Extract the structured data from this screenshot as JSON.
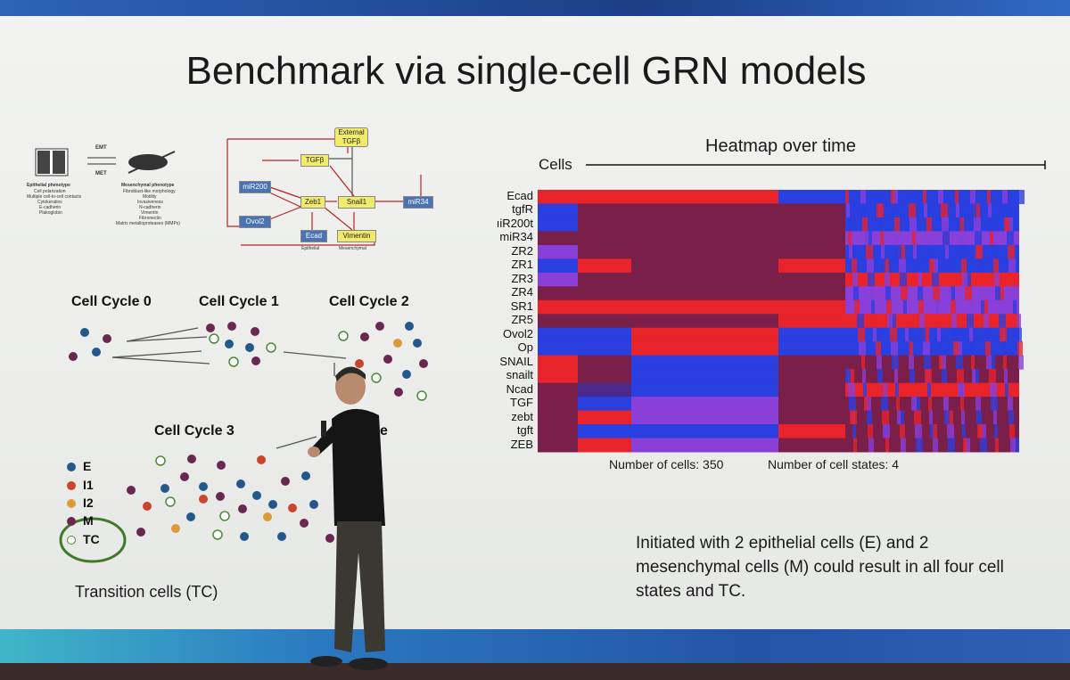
{
  "slide": {
    "title": "Benchmark via single-cell GRN models",
    "cycles": [
      "Cell Cycle 0",
      "Cell Cycle 1",
      "Cell Cycle 2",
      "Cell Cycle 3",
      "Cell Divide"
    ],
    "cycle_divide_visible": "Ce     vide",
    "legend": [
      {
        "label": "E",
        "color": "#22588c"
      },
      {
        "label": "I1",
        "color": "#c9462a"
      },
      {
        "label": "I2",
        "color": "#dc9a3a"
      },
      {
        "label": "M",
        "color": "#6a2750"
      },
      {
        "label": "TC",
        "color": "#ffffff"
      }
    ],
    "transition_label": "Transition cells (TC)",
    "phenotype": {
      "epithelial_title": "Epithelial phenotype",
      "epithelial_items": [
        "Cell polarization",
        "Multiple cell-to-cell contacts",
        "Cytokeratins",
        "E-cadherin",
        "Plakoglobin"
      ],
      "emt": "EMT",
      "met": "MET",
      "mesenchymal_title": "Mesenchymal phenotype",
      "mesenchymal_items": [
        "Fibroblast-like morphology",
        "Motility",
        "Invasiveness",
        "N-cadherin",
        "Vimentin",
        "Fibronectin",
        "Matrix metalloproteases (MMPs)"
      ]
    },
    "network": {
      "external": "External TGFβ",
      "tgfb": "TGFβ",
      "mir200": "miR200",
      "zeb1": "Zeb1",
      "snail1": "Snail1",
      "mir34": "miR34",
      "ovol2": "Ovol2",
      "ecad": "Ecad",
      "vimentin": "Vimentin",
      "epithelial": "Epithelial",
      "mesenchymal": "Mesenchymal"
    },
    "heatmap": {
      "title": "Heatmap over time",
      "cells_label": "Cells",
      "genes": [
        "Ecad",
        "tgfR",
        "miR200t",
        "miR34",
        "ZR2",
        "ZR1",
        "ZR3",
        "ZR4",
        "SR1",
        "ZR5",
        "Ovol2",
        "Op",
        "SNAIL",
        "snailt",
        "Ncad",
        "TGF",
        "zebt",
        "tgft",
        "ZEB"
      ],
      "genes_visible": [
        "Ecad",
        "tgfR",
        "ıiR200t",
        "miR34",
        "ZR2",
        "ZR1",
        "ZR3",
        "ZR4",
        "SR1",
        "ZR5",
        "Ovol2",
        "Op",
        "SNAIL",
        "snailt",
        "Ncad",
        "TGF",
        "zebt",
        "tgft",
        "ZEB"
      ],
      "num_cells": "Number of cells: 350",
      "num_states": "Number of cell states: 4",
      "colors": {
        "red": "#e8232a",
        "blue": "#2a3fe0",
        "maroon": "#7a1f4a",
        "purple": "#8a3fd8",
        "dark": "#4a2a8a"
      }
    },
    "info_text": "Initiated with 2 epithelial cells (E) and 2 mesenchymal cells (M) could result in all four cell states and TC."
  }
}
